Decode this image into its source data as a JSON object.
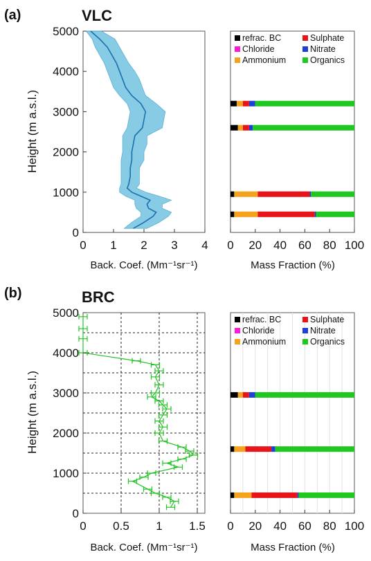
{
  "panel_labels": [
    "(a)",
    "(b)"
  ],
  "panel_titles": [
    "VLC",
    "BRC"
  ],
  "ylabel": "Height  (m a.s.l.)",
  "xlabel_left": "Back. Coef. (Mm⁻¹sr⁻¹)",
  "xlabel_right": "Mass Fraction (%)",
  "legend": {
    "refrac": "refrac. BC",
    "sulphate": "Sulphate",
    "chloride": "Chloride",
    "nitrate": "Nitrate",
    "ammonium": "Ammonium",
    "organics": "Organics"
  },
  "colors": {
    "refrac": "#000000",
    "sulphate": "#e8141a",
    "chloride": "#ff1ad8",
    "nitrate": "#1f3fd9",
    "ammonium": "#f5a21c",
    "organics": "#1ec81e",
    "vlc_band": "#7cc6e2",
    "vlc_line": "#1b6fb0",
    "brc_line": "#22c322"
  },
  "chart_data": [
    {
      "type": "area",
      "panel": "a-left",
      "xlim": [
        0,
        4
      ],
      "ylim": [
        0,
        5000
      ],
      "xticks": [
        "0",
        "1",
        "2",
        "3",
        "4"
      ],
      "yticks": [
        "0",
        "1000",
        "2000",
        "3000",
        "4000",
        "5000"
      ],
      "series": [
        {
          "heights": [
            100,
            250,
            400,
            500,
            600,
            700,
            800,
            900,
            1000,
            1100,
            1200,
            1400,
            1600,
            1800,
            2000,
            2200,
            2400,
            2600,
            2800,
            3000,
            3200,
            3400,
            3600,
            3800,
            4000,
            4200,
            4400,
            4600,
            4800,
            5000
          ],
          "mean": [
            1.65,
            2.0,
            2.3,
            2.4,
            2.15,
            2.1,
            2.2,
            1.9,
            1.6,
            1.45,
            1.5,
            1.55,
            1.55,
            1.6,
            1.6,
            1.65,
            1.7,
            1.95,
            2.0,
            2.05,
            1.9,
            1.6,
            1.4,
            1.3,
            1.2,
            1.1,
            0.95,
            0.8,
            0.55,
            0.25
          ],
          "lower": [
            1.35,
            1.6,
            1.9,
            1.9,
            1.75,
            1.7,
            1.7,
            1.4,
            1.2,
            1.2,
            1.25,
            1.25,
            1.25,
            1.25,
            1.3,
            1.3,
            1.3,
            1.45,
            1.5,
            1.55,
            1.45,
            1.2,
            1.0,
            0.9,
            0.8,
            0.7,
            0.55,
            0.4,
            0.3,
            0.1
          ],
          "upper": [
            2.1,
            2.5,
            2.8,
            2.9,
            2.6,
            2.6,
            2.9,
            2.5,
            2.05,
            1.75,
            1.85,
            1.85,
            1.85,
            2.0,
            2.0,
            2.1,
            2.1,
            2.6,
            2.65,
            2.7,
            2.4,
            2.05,
            1.95,
            1.85,
            1.7,
            1.5,
            1.35,
            1.2,
            1.05,
            0.6
          ]
        }
      ]
    },
    {
      "type": "bar",
      "panel": "a-right",
      "xlim": [
        0,
        100
      ],
      "xticks": [
        "0",
        "20",
        "40",
        "60",
        "80",
        "100"
      ],
      "bars": [
        {
          "height": 3200,
          "refrac": 5,
          "chloride": 0,
          "ammonium": 5,
          "sulphate": 5,
          "nitrate": 5,
          "organics": 80
        },
        {
          "height": 2600,
          "refrac": 6,
          "chloride": 0,
          "ammonium": 4,
          "sulphate": 5,
          "nitrate": 3,
          "organics": 82
        },
        {
          "height": 950,
          "refrac": 3,
          "chloride": 0,
          "ammonium": 19,
          "sulphate": 42,
          "nitrate": 1,
          "organics": 35
        },
        {
          "height": 450,
          "refrac": 3,
          "chloride": 0,
          "ammonium": 19,
          "sulphate": 46,
          "nitrate": 1,
          "organics": 31
        }
      ]
    },
    {
      "type": "line",
      "panel": "b-left",
      "xlim": [
        0,
        1.6
      ],
      "ylim": [
        0,
        5000
      ],
      "xticks": [
        "0",
        "0.5",
        "1",
        "1.5"
      ],
      "yticks": [
        "0",
        "1000",
        "2000",
        "3000",
        "4000",
        "5000"
      ],
      "series": [
        {
          "x": [
            1.15,
            1.2,
            1.1,
            0.95,
            0.85,
            0.65,
            0.8,
            0.9,
            1.25,
            1.1,
            1.3,
            1.45,
            1.4,
            1.3,
            1.05,
            1.0,
            1.05,
            1.0,
            1.05,
            1.1,
            1.05,
            1.0,
            0.9,
            0.95,
            1.0,
            0.95,
            1.0,
            0.95,
            0.7,
            0.0,
            0.0,
            0.0,
            0.0
          ],
          "y": [
            150,
            300,
            400,
            500,
            600,
            800,
            900,
            1000,
            1150,
            1250,
            1350,
            1450,
            1550,
            1650,
            1800,
            2000,
            2150,
            2300,
            2450,
            2600,
            2700,
            2800,
            2900,
            3000,
            3200,
            3400,
            3550,
            3700,
            3800,
            4000,
            4350,
            4600,
            4900
          ]
        }
      ]
    },
    {
      "type": "bar",
      "panel": "b-right",
      "xlim": [
        0,
        100
      ],
      "xticks": [
        "0",
        "20",
        "40",
        "60",
        "80",
        "100"
      ],
      "bars": [
        {
          "height": 2950,
          "refrac": 6,
          "chloride": 0,
          "ammonium": 4,
          "sulphate": 5,
          "nitrate": 5,
          "organics": 80
        },
        {
          "height": 1600,
          "refrac": 3,
          "chloride": 0,
          "ammonium": 9,
          "sulphate": 21,
          "nitrate": 3,
          "organics": 64
        },
        {
          "height": 450,
          "refrac": 3,
          "chloride": 0,
          "ammonium": 14,
          "sulphate": 37,
          "nitrate": 1,
          "organics": 45
        }
      ]
    }
  ]
}
